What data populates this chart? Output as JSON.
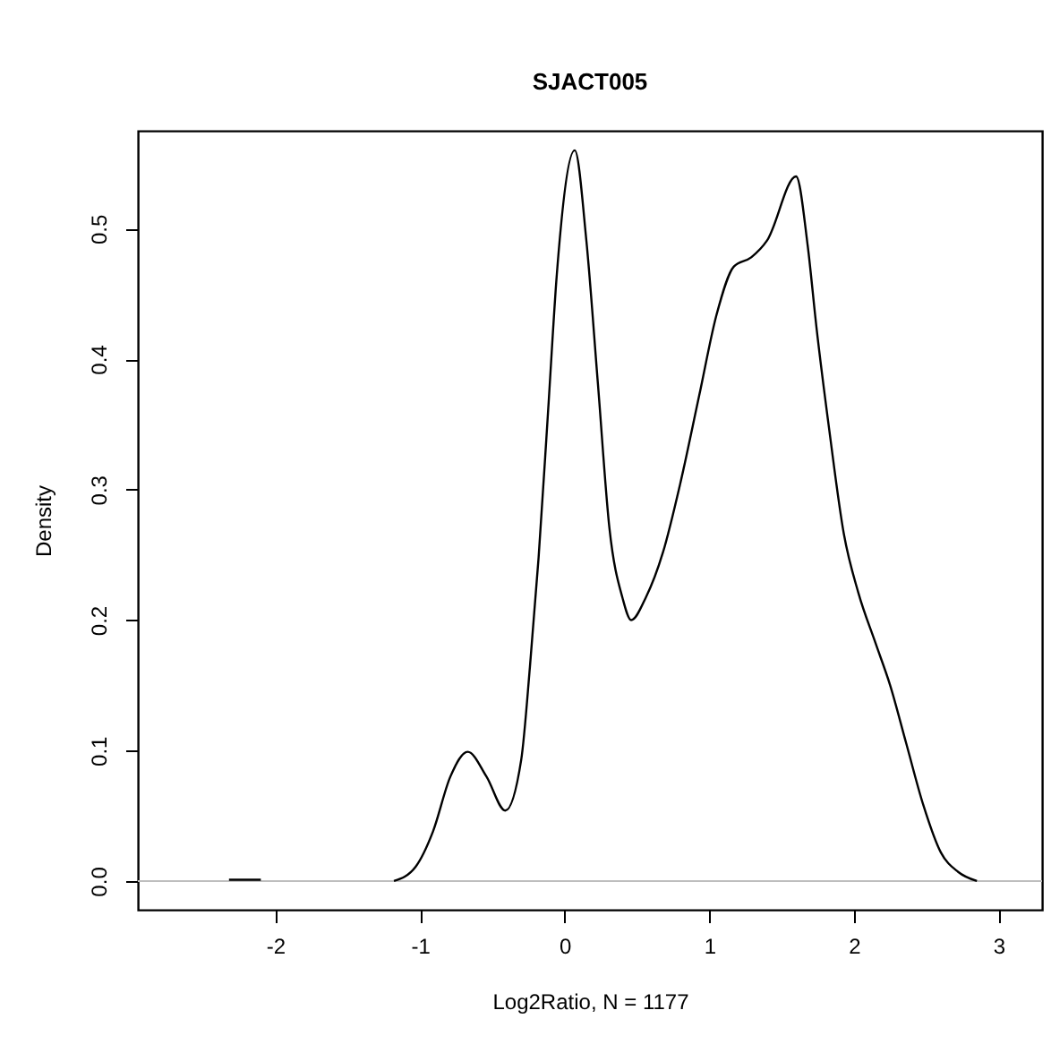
{
  "chart_data": {
    "type": "line",
    "title": "SJACT005",
    "xlabel": "Log2Ratio, N = 1177",
    "ylabel": "Density",
    "x": [
      -2.32,
      -2.1,
      -2.0,
      -1.18,
      -1.03,
      -0.91,
      -0.79,
      -0.67,
      -0.54,
      -0.41,
      -0.3,
      -0.24,
      -0.18,
      -0.115,
      -0.054,
      0.07,
      0.15,
      0.23,
      0.31,
      0.4,
      0.46,
      0.56,
      0.68,
      0.8,
      0.93,
      1.05,
      1.17,
      1.29,
      1.4,
      1.6,
      1.68,
      1.74,
      1.83,
      1.93,
      2.03,
      2.15,
      2.25,
      2.36,
      2.48,
      2.6,
      2.72,
      2.85
    ],
    "series": [
      {
        "color": "#000000",
        "values": [
          0.001,
          0.001,
          null,
          0.0,
          0.011,
          0.038,
          0.08,
          0.099,
          0.08,
          0.054,
          0.093,
          0.164,
          0.248,
          0.359,
          0.465,
          0.56,
          0.491,
          0.381,
          0.27,
          0.217,
          0.2,
          0.217,
          0.252,
          0.305,
          0.372,
          0.434,
          0.471,
          0.478,
          0.491,
          0.54,
          0.487,
          0.425,
          0.345,
          0.266,
          0.221,
          0.182,
          0.15,
          0.106,
          0.058,
          0.022,
          0.007,
          0.0
        ]
      }
    ],
    "xlim": [
      -2.95,
      3.3
    ],
    "ylim": [
      -0.022,
      0.575
    ],
    "xticks": [
      -2,
      -1,
      0,
      1,
      2,
      3
    ],
    "yticks": [
      {
        "value": 0,
        "label": "0.0"
      },
      {
        "value": 0.1,
        "label": "0.1"
      },
      {
        "value": 0.2,
        "label": "0.2"
      },
      {
        "value": 0.3,
        "label": "0.3"
      },
      {
        "value": 0.4,
        "label": "0.4"
      },
      {
        "value": 0.5,
        "label": "0.5"
      }
    ],
    "ref_lines": [
      {
        "axis": "y",
        "value": 0,
        "color": "#bebebe"
      }
    ],
    "grid": false,
    "line_style": "solid"
  }
}
